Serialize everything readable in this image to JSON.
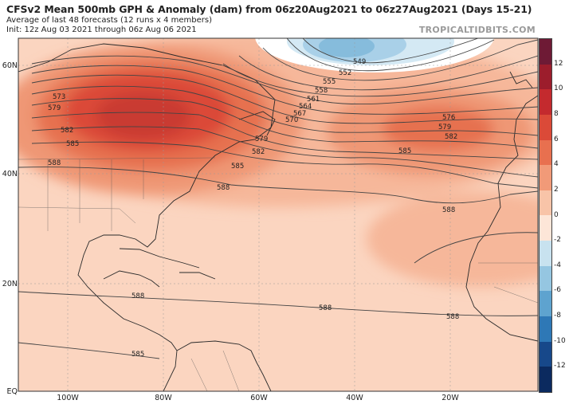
{
  "header": {
    "title": "CFSv2 Mean 500mb GPH & Anomaly (dam) from 06z20Aug2021 to 06z27Aug2021 (Days 15-21)",
    "subtitle": "Average of last 48 forecasts (12 runs x 4 members)",
    "init": "Init: 12z Aug 03 2021 through 06z Aug 06 2021",
    "brand": "TROPICALTIDBITS.COM"
  },
  "axes": {
    "lat_labels": [
      "60N",
      "40N",
      "20N",
      "EQ"
    ],
    "lon_labels": [
      "100W",
      "80W",
      "60W",
      "40W",
      "20W"
    ]
  },
  "colorbar": {
    "ticks": [
      "12",
      "10",
      "8",
      "6",
      "4",
      "2",
      "0",
      "-2",
      "-4",
      "-6",
      "-8",
      "-10",
      "-12"
    ],
    "colors": [
      "#6e1a35",
      "#9c1d2c",
      "#c42a2e",
      "#db4a38",
      "#e8704f",
      "#f19a78",
      "#f8c4a8",
      "#fde6d8",
      "#c8e2ef",
      "#95c6e1",
      "#5ea3cf",
      "#2e78b6",
      "#17488a",
      "#0b2a5f"
    ]
  },
  "contours": {
    "labels": [
      "549",
      "552",
      "555",
      "558",
      "561",
      "564",
      "567",
      "570",
      "573",
      "576",
      "579",
      "582",
      "585",
      "588"
    ]
  }
}
